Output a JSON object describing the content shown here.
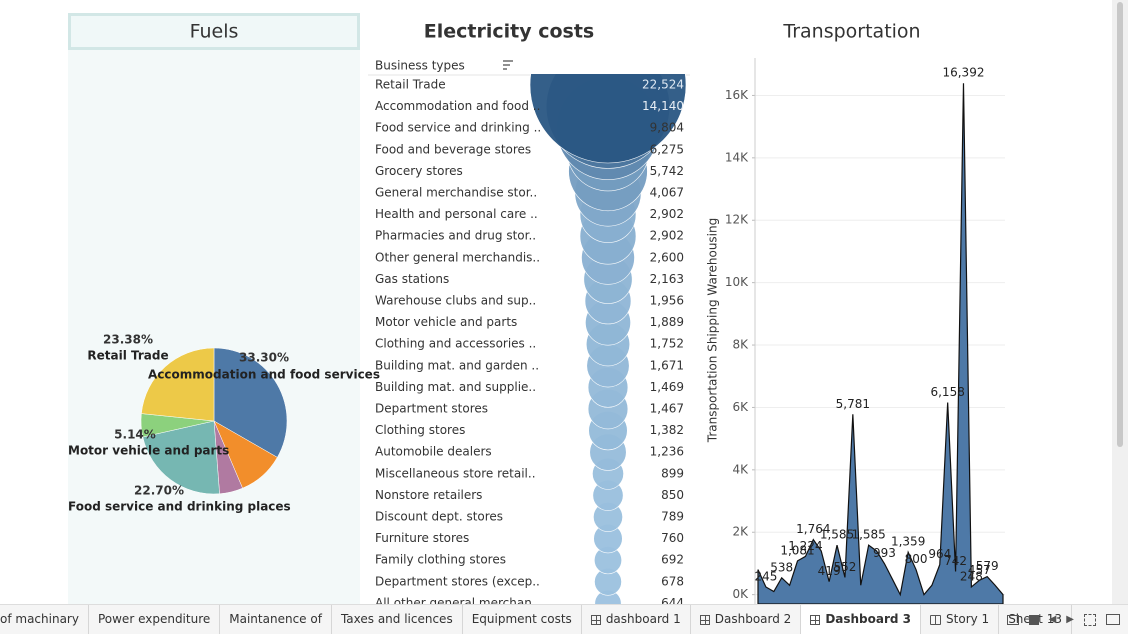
{
  "chart_data": [
    {
      "type": "pie",
      "title": "Fuels",
      "categories": [
        "Accommodation and food services",
        null,
        null,
        "Food service and drinking places",
        "Motor vehicle and parts",
        "Retail Trade"
      ],
      "values": [
        33.3,
        10.3,
        5.18,
        22.7,
        5.14,
        23.38
      ],
      "value_labels": [
        "33.30%",
        null,
        null,
        "22.70%",
        "5.14%",
        "23.38%"
      ],
      "colors": [
        "#4e79a7",
        "#f28e2b",
        "#b07aa1",
        "#76b7b2",
        "#8cd17d",
        "#edc948"
      ]
    },
    {
      "type": "bubble",
      "title": "Electricity costs",
      "category_label": "Business types",
      "categories": [
        "Retail Trade",
        "Accommodation and food ..",
        "Food service and drinking ..",
        "Food and beverage stores",
        "Grocery stores",
        "General merchandise stor..",
        "Health and personal care ..",
        "Pharmacies and drug stor..",
        "Other general merchandis..",
        "Gas stations",
        "Warehouse clubs and sup..",
        "Motor vehicle and parts",
        "Clothing and accessories ..",
        "Building mat. and garden ..",
        "Building mat. and supplie..",
        "Department stores",
        "Clothing stores",
        "Automobile dealers",
        "Miscellaneous store retail..",
        "Nonstore retailers",
        "Discount dept. stores",
        "Furniture stores",
        "Family clothing stores",
        "Department stores (excep..",
        "All other general merchan.."
      ],
      "values": [
        22524,
        14140,
        9804,
        6275,
        5742,
        4067,
        2902,
        2902,
        2600,
        2163,
        1956,
        1889,
        1752,
        1671,
        1469,
        1467,
        1382,
        1236,
        899,
        850,
        789,
        760,
        692,
        678,
        644
      ],
      "value_labels": [
        "22,524",
        "14,140",
        "9,804",
        "6,275",
        "5,742",
        "4,067",
        "2,902",
        "2,902",
        "2,600",
        "2,163",
        "1,956",
        "1,889",
        "1,752",
        "1,671",
        "1,469",
        "1,467",
        "1,382",
        "1,236",
        "899",
        "850",
        "789",
        "760",
        "692",
        "678",
        "644"
      ],
      "color_low": "#a6cbe8",
      "color_high": "#2a5783"
    },
    {
      "type": "area",
      "title": "Transportation",
      "y_label": "Transportation Shipping Warehousing",
      "values": [
        800,
        245,
        100,
        538,
        300,
        1081,
        1224,
        1764,
        1400,
        419,
        1585,
        552,
        5781,
        300,
        1585,
        1400,
        993,
        500,
        0,
        1359,
        800,
        0,
        300,
        964,
        6158,
        742,
        16392,
        248,
        457,
        579,
        300,
        0
      ],
      "value_labels": [
        null,
        "245",
        null,
        "538",
        null,
        "1,081",
        "1,224",
        "1,764",
        null,
        "419",
        "1,585",
        "552",
        "5,781",
        null,
        "1,585",
        null,
        "993",
        null,
        null,
        "1,359",
        "800",
        null,
        null,
        "964",
        "6,158",
        "742",
        "16,392",
        "248",
        "457",
        "579",
        null,
        null
      ],
      "color": "#4e79a7",
      "grid": true,
      "ylim": [
        -300,
        17200
      ],
      "yticks": [
        {
          "value": 0,
          "label": "0K"
        },
        {
          "value": 2000,
          "label": "2K"
        },
        {
          "value": 4000,
          "label": "4K"
        },
        {
          "value": 6000,
          "label": "6K"
        },
        {
          "value": 8000,
          "label": "8K"
        },
        {
          "value": 10000,
          "label": "10K"
        },
        {
          "value": 12000,
          "label": "12K"
        },
        {
          "value": 14000,
          "label": "14K"
        },
        {
          "value": 16000,
          "label": "16K"
        }
      ]
    }
  ],
  "tabs": [
    {
      "label": "of machinary"
    },
    {
      "label": "Power expenditure"
    },
    {
      "label": "Maintanence of"
    },
    {
      "label": "Taxes and licences"
    },
    {
      "label": "Equipment costs"
    },
    {
      "label": "dashboard 1",
      "icon": "dashboard"
    },
    {
      "label": "Dashboard 2",
      "icon": "dashboard"
    },
    {
      "label": "Dashboard 3",
      "icon": "dashboard",
      "active": true
    },
    {
      "label": "Story 1",
      "icon": "story"
    },
    {
      "label": "Sheet 13"
    }
  ]
}
